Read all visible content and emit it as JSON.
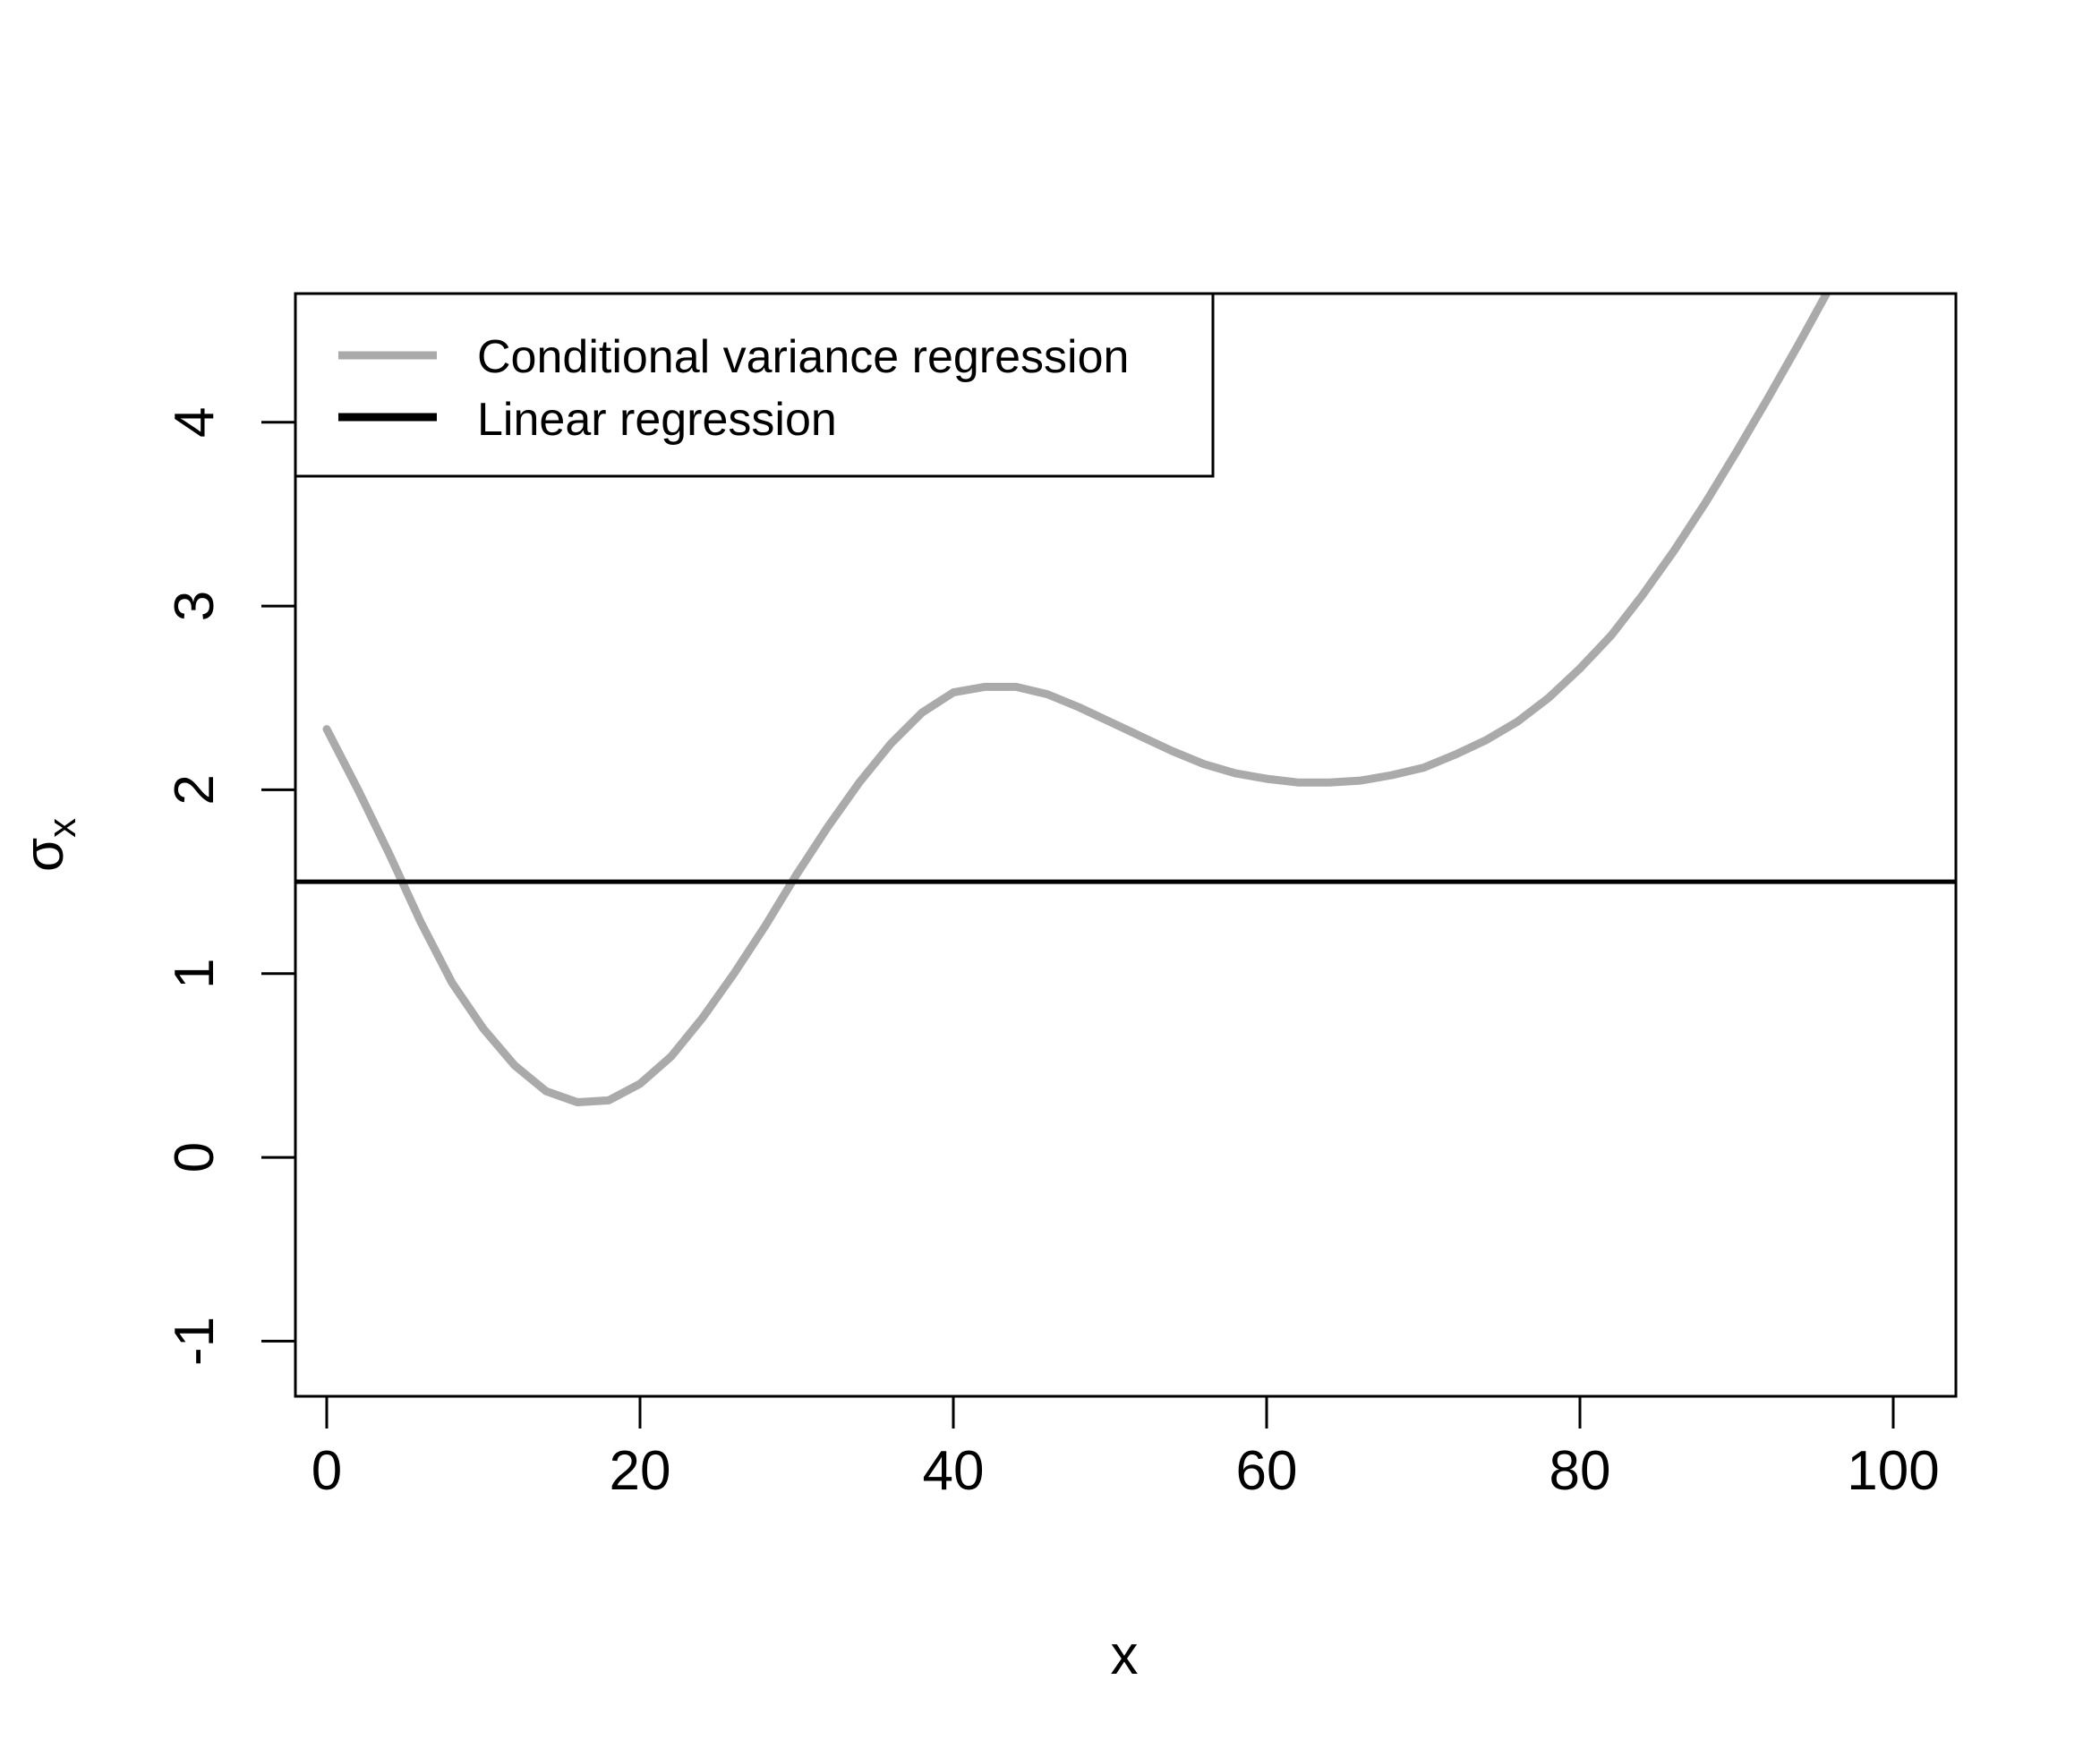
{
  "chart_data": {
    "type": "line",
    "title": "",
    "xlabel": "x",
    "ylabel": "σ",
    "ylabel_subscript": "x",
    "xlim": [
      -2,
      104
    ],
    "ylim": [
      -1.3,
      4.7
    ],
    "xticks": [
      0,
      20,
      40,
      60,
      80,
      100
    ],
    "xtick_labels": [
      "0",
      "20",
      "40",
      "60",
      "80",
      "100"
    ],
    "yticks": [
      -1,
      0,
      1,
      2,
      3,
      4
    ],
    "ytick_labels": [
      "-1",
      "0",
      "1",
      "2",
      "3",
      "4"
    ],
    "grid": false,
    "legend_position": "top-left",
    "series": [
      {
        "name": "Conditional variance regression",
        "color": "#aaaaaa",
        "x": [
          0,
          2,
          4,
          6,
          8,
          10,
          12,
          14,
          16,
          18,
          20,
          22,
          24,
          26,
          28,
          30,
          32,
          34,
          36,
          38,
          40,
          42,
          44,
          46,
          48,
          50,
          52,
          54,
          56,
          58,
          60,
          62,
          64,
          66,
          68,
          70,
          72,
          74,
          76,
          78,
          80,
          82,
          84,
          86,
          88,
          90,
          92,
          94,
          96,
          97.5
        ],
        "y": [
          2.33,
          2.0,
          1.65,
          1.28,
          0.95,
          0.7,
          0.5,
          0.36,
          0.3,
          0.31,
          0.4,
          0.55,
          0.76,
          1.0,
          1.26,
          1.54,
          1.8,
          2.04,
          2.25,
          2.42,
          2.53,
          2.56,
          2.56,
          2.52,
          2.45,
          2.37,
          2.29,
          2.21,
          2.14,
          2.09,
          2.06,
          2.04,
          2.04,
          2.05,
          2.08,
          2.12,
          2.19,
          2.27,
          2.37,
          2.5,
          2.66,
          2.84,
          3.06,
          3.3,
          3.56,
          3.84,
          4.13,
          4.43,
          4.74,
          4.97
        ]
      },
      {
        "name": "Linear regression",
        "color": "#000000",
        "x": [
          -2,
          104
        ],
        "y": [
          1.5,
          1.5
        ]
      }
    ]
  }
}
